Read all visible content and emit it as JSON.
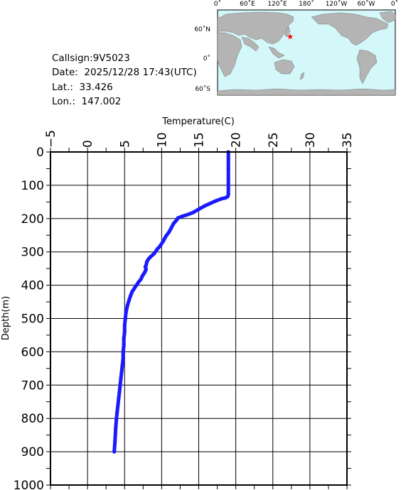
{
  "meta": {
    "callsign_label": "Callsign:",
    "callsign": "9V5023",
    "date_label": "Date:",
    "date": "2025/12/28 17:43(UTC)",
    "lat_label": "Lat.:",
    "lat": "33.426",
    "lon_label": "Lon.:",
    "lon": "147.002"
  },
  "map": {
    "top_labels": [
      "0˚",
      "60˚E",
      "120˚E",
      "180˚",
      "120˚W",
      "60˚W",
      "0˚"
    ],
    "side_labels": [
      "60˚N",
      "0˚",
      "60˚S"
    ],
    "ocean_color": "#d4f7fa",
    "land_color": "#b4b4b4",
    "marker_color": "#ff0000"
  },
  "chart_data": {
    "type": "line",
    "xlabel": "Temperature(C)",
    "ylabel": "Depth(m)",
    "xlim": [
      -5,
      35
    ],
    "ylim": [
      0,
      1000
    ],
    "y_inverted": true,
    "x_ticks": [
      "−5",
      "0",
      "5",
      "10",
      "15",
      "20",
      "25",
      "30",
      "35"
    ],
    "y_ticks": [
      "0",
      "100",
      "200",
      "300",
      "400",
      "500",
      "600",
      "700",
      "800",
      "900",
      "1000"
    ],
    "grid": true,
    "line_color": "#1a1aff",
    "series": [
      {
        "x": [
          19.0,
          19.0,
          19.0,
          19.0,
          19.0,
          19.0,
          18.9,
          18.6,
          18.0,
          17.2,
          16.5,
          15.8,
          15.0,
          14.2,
          13.5,
          12.8,
          12.2,
          12.0,
          11.6,
          11.3,
          11.0,
          10.6,
          10.2,
          9.8,
          9.4,
          9.0,
          8.5,
          8.2,
          8.0,
          7.9,
          7.8,
          7.9,
          7.7,
          7.4,
          7.2,
          6.9,
          6.6,
          6.3,
          6.0,
          5.8,
          5.6,
          5.4,
          5.2,
          5.1,
          5.0,
          5.0,
          4.9,
          4.9,
          4.8,
          4.8,
          4.7,
          4.6,
          4.5,
          4.4,
          4.3,
          4.2,
          4.1,
          4.0,
          3.9,
          3.8,
          3.7,
          3.6
        ],
        "y": [
          0,
          20,
          50,
          80,
          110,
          128,
          134,
          138,
          141,
          148,
          155,
          162,
          172,
          182,
          188,
          193,
          198,
          205,
          215,
          228,
          240,
          252,
          268,
          282,
          292,
          305,
          315,
          322,
          330,
          340,
          345,
          352,
          362,
          372,
          382,
          390,
          400,
          410,
          420,
          432,
          445,
          460,
          480,
          500,
          520,
          540,
          560,
          580,
          600,
          620,
          640,
          660,
          680,
          700,
          720,
          740,
          760,
          780,
          800,
          830,
          870,
          900
        ]
      }
    ]
  }
}
